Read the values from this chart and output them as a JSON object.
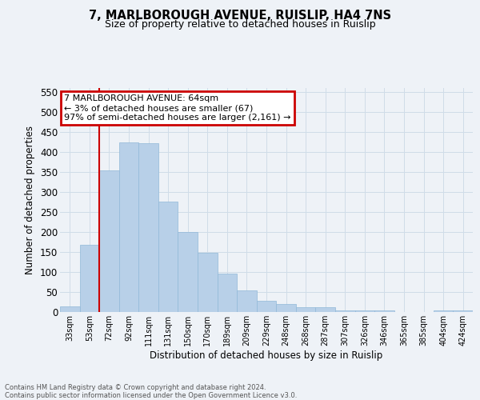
{
  "title1": "7, MARLBOROUGH AVENUE, RUISLIP, HA4 7NS",
  "title2": "Size of property relative to detached houses in Ruislip",
  "xlabel": "Distribution of detached houses by size in Ruislip",
  "ylabel": "Number of detached properties",
  "footer": "Contains HM Land Registry data © Crown copyright and database right 2024.\nContains public sector information licensed under the Open Government Licence v3.0.",
  "categories": [
    "33sqm",
    "53sqm",
    "72sqm",
    "92sqm",
    "111sqm",
    "131sqm",
    "150sqm",
    "170sqm",
    "189sqm",
    "209sqm",
    "229sqm",
    "248sqm",
    "268sqm",
    "287sqm",
    "307sqm",
    "326sqm",
    "346sqm",
    "365sqm",
    "385sqm",
    "404sqm",
    "424sqm"
  ],
  "values": [
    15,
    168,
    355,
    425,
    423,
    276,
    200,
    148,
    96,
    55,
    28,
    20,
    13,
    13,
    5,
    5,
    4,
    1,
    0,
    5,
    4
  ],
  "bar_color": "#b8d0e8",
  "bar_edge_color": "#90b8d8",
  "grid_color": "#d0dce8",
  "annotation_text": "7 MARLBOROUGH AVENUE: 64sqm\n← 3% of detached houses are smaller (67)\n97% of semi-detached houses are larger (2,161) →",
  "annotation_box_color": "#ffffff",
  "annotation_box_edge": "#cc0000",
  "vline_color": "#cc0000",
  "ylim": [
    0,
    560
  ],
  "yticks": [
    0,
    50,
    100,
    150,
    200,
    250,
    300,
    350,
    400,
    450,
    500,
    550
  ],
  "bg_color": "#eef2f7",
  "plot_bg_color": "#eef2f7"
}
